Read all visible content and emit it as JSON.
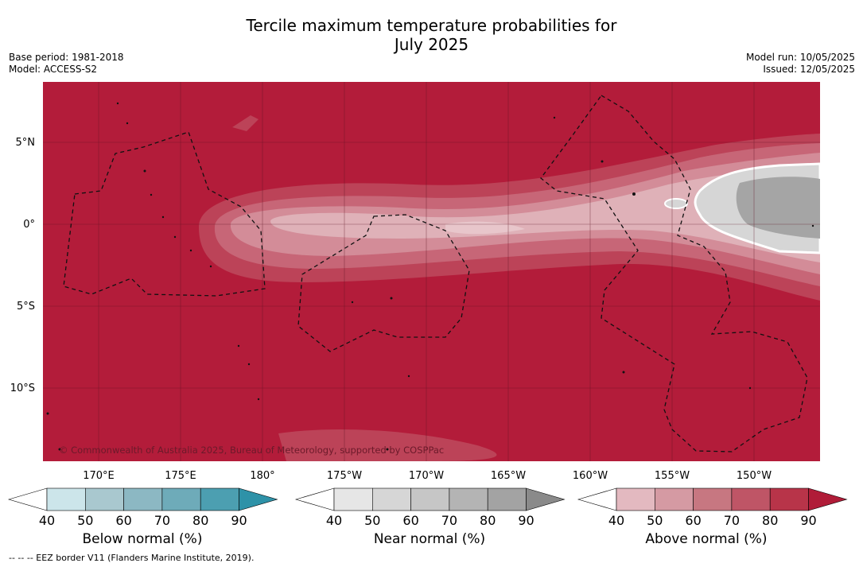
{
  "title_line1": "Tercile maximum temperature probabilities for",
  "title_line2": "July 2025",
  "meta_left": {
    "base_period": "Base period: 1981-2018",
    "model": "Model: ACCESS-S2"
  },
  "meta_right": {
    "model_run": "Model run: 10/05/2025",
    "issued": "Issued: 12/05/2025"
  },
  "lat_labels": [
    "5°N",
    "0°",
    "5°S",
    "10°S"
  ],
  "lon_labels": [
    "170°E",
    "175°E",
    "180°",
    "175°W",
    "170°W",
    "165°W",
    "160°W",
    "155°W",
    "150°W"
  ],
  "copyright": "© Commonwealth of Australia 2025, Bureau of Meteorology, supported by COSPPac",
  "colorbars": {
    "below": {
      "label": "Below normal (%)",
      "ticks": [
        "40",
        "50",
        "60",
        "70",
        "80",
        "90"
      ],
      "colors": [
        "#ffffff",
        "#cce5ea",
        "#a9c8cf",
        "#8cb8c3",
        "#6eabb9",
        "#4c9fb1",
        "#2e92a8"
      ]
    },
    "near": {
      "label": "Near normal (%)",
      "ticks": [
        "40",
        "50",
        "60",
        "70",
        "80",
        "90"
      ],
      "colors": [
        "#ffffff",
        "#e6e6e6",
        "#d6d6d6",
        "#c6c6c6",
        "#b4b4b4",
        "#a3a3a3",
        "#8a8a8a"
      ]
    },
    "above": {
      "label": "Above normal (%)",
      "ticks": [
        "40",
        "50",
        "60",
        "70",
        "80",
        "90"
      ],
      "colors": [
        "#ffffff",
        "#e3b9c0",
        "#d59aa3",
        "#c77781",
        "#bf5566",
        "#b83449",
        "#b01c38"
      ]
    }
  },
  "footnote": "--  --  -- EEZ border V11 (Flanders Marine Institute, 2019)."
}
